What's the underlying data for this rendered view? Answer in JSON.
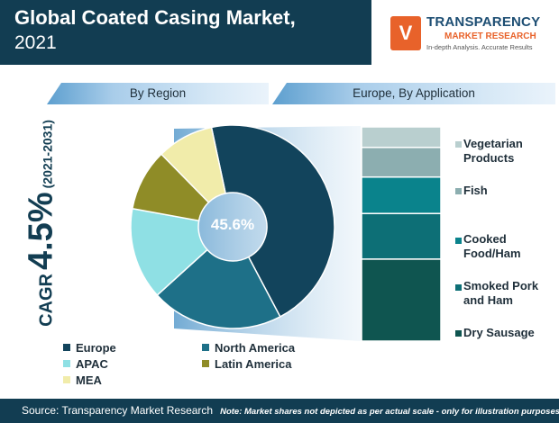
{
  "header": {
    "title_line1": "Global Coated Casing Market,",
    "title_line2": "2021"
  },
  "logo": {
    "mark": "V",
    "name": "TRANSPARENCY",
    "sub": "MARKET RESEARCH",
    "tagline": "In-depth Analysis. Accurate Results"
  },
  "sections": {
    "region": "By Region",
    "europe": "Europe, By Application"
  },
  "cagr": {
    "label": "CAGR",
    "value": "4.5%",
    "period": "(2021-2031)"
  },
  "chart_data": [
    {
      "type": "pie",
      "title": "By Region",
      "donut": true,
      "center_label": "45.6%",
      "categories": [
        "Europe",
        "North America",
        "APAC",
        "Latin America",
        "MEA"
      ],
      "values": [
        45.6,
        21.0,
        14.6,
        9.8,
        9.0
      ],
      "colors": [
        "#12445c",
        "#1e7088",
        "#8fe0e4",
        "#8f8c27",
        "#f1ecaa"
      ]
    },
    {
      "type": "bar",
      "stacked": true,
      "orientation": "vertical",
      "title": "Europe, By Application",
      "note": "Market shares not depicted as per actual scale",
      "categories": [
        "Dry Sausage",
        "Smoked Pork and Ham",
        "Cooked Food/Ham",
        "Fish",
        "Vegetarian Products"
      ],
      "values": [
        36,
        20,
        16,
        13,
        9
      ],
      "colors": [
        "#0f5550",
        "#0d6f76",
        "#0a838c",
        "#8caeb0",
        "#b9cfcf"
      ]
    }
  ],
  "region_legend": [
    "Europe",
    "North America",
    "APAC",
    "Latin America",
    "MEA"
  ],
  "europe_legend": [
    "Vegetarian Products",
    "Fish",
    "Cooked Food/Ham",
    "Smoked Pork and Ham",
    "Dry Sausage"
  ],
  "footer": {
    "source": "Source: Transparency Market Research",
    "note": "Note: Market shares not depicted as per actual scale - only for illustration purposes"
  }
}
